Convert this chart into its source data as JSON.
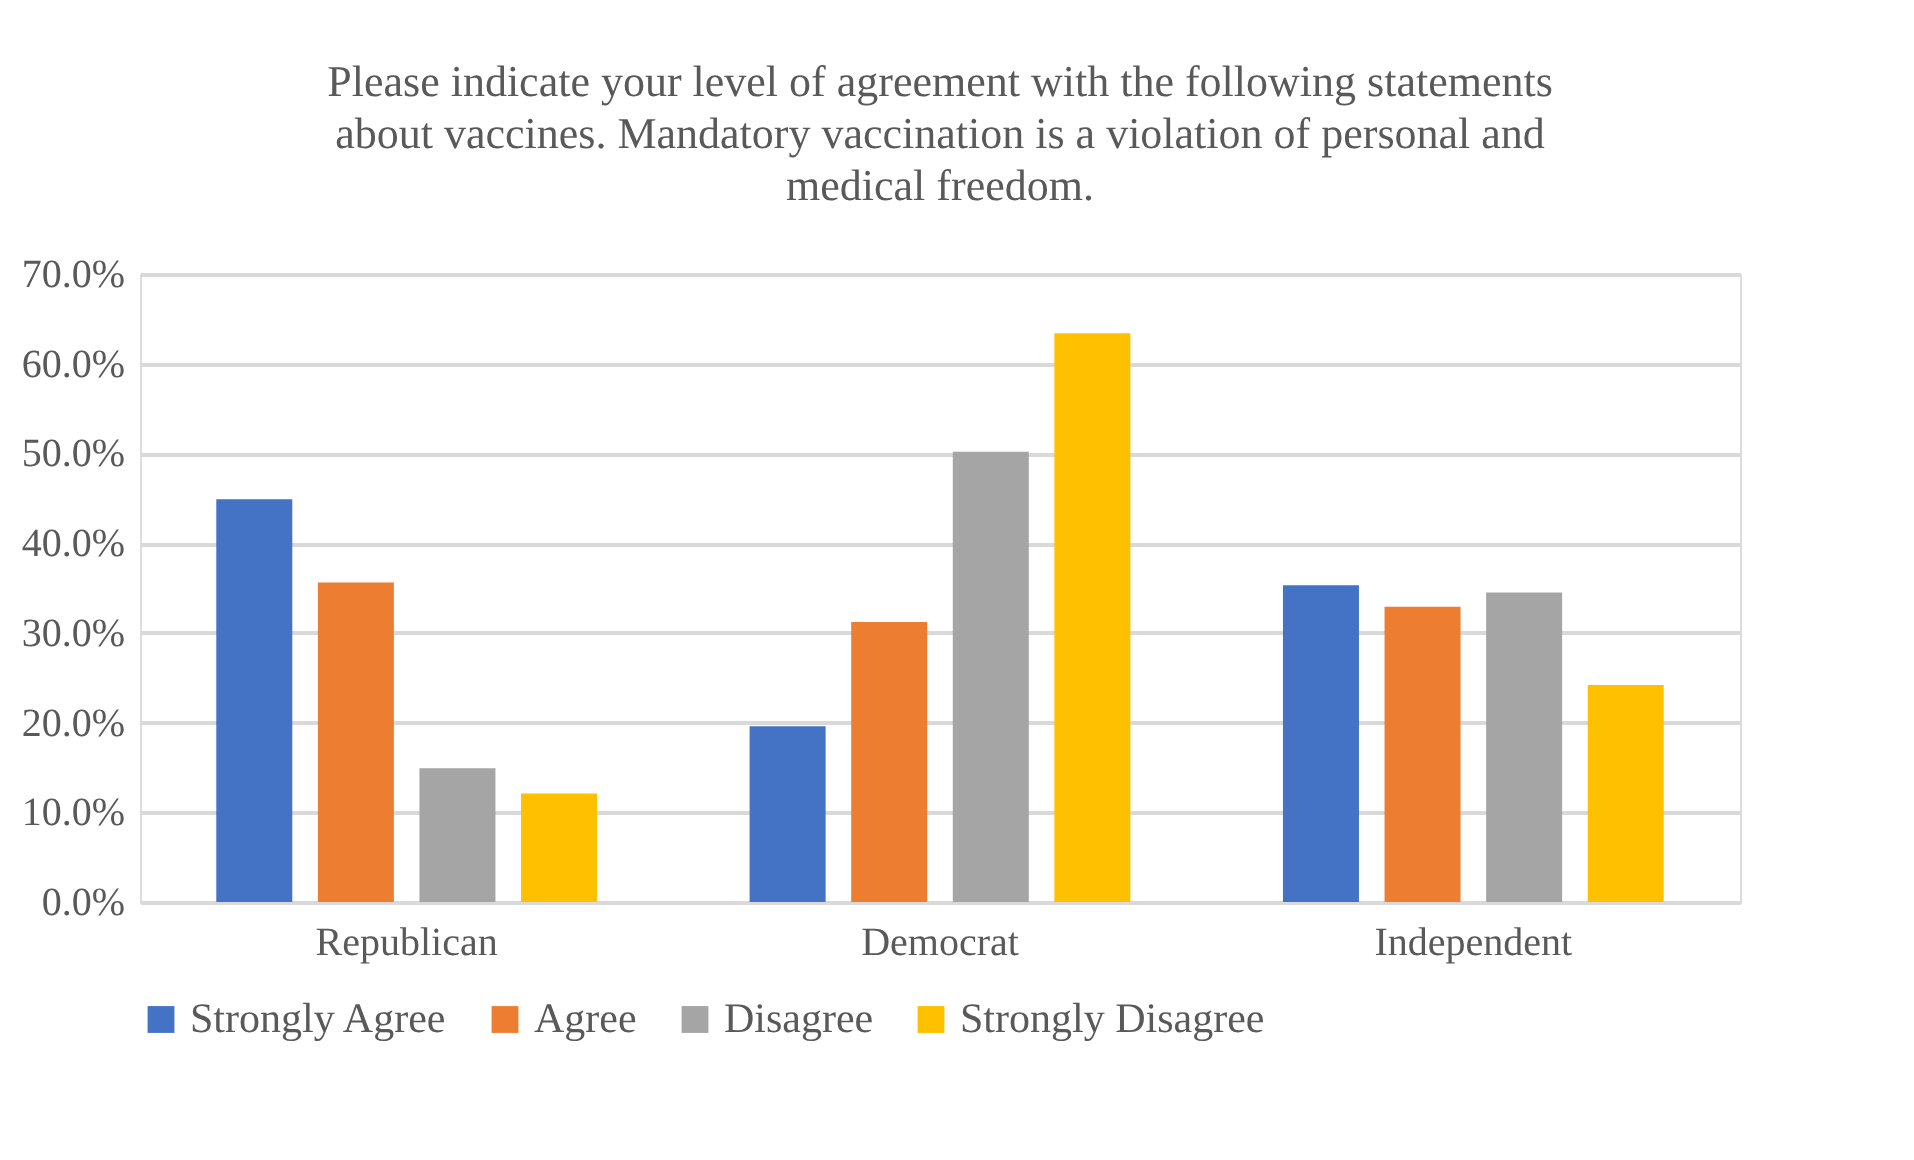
{
  "chart_data": {
    "type": "bar",
    "title": [
      "Please indicate your level of agreement with the following statements",
      "about vaccines. Mandatory vaccination is a violation of personal and",
      "medical freedom."
    ],
    "categories": [
      "Republican",
      "Democrat",
      "Independent"
    ],
    "series": [
      {
        "name": "Strongly Agree",
        "color": "#4472c4",
        "values": [
          44.9,
          19.6,
          35.3
        ]
      },
      {
        "name": "Agree",
        "color": "#ed7d31",
        "values": [
          35.6,
          31.2,
          32.9
        ]
      },
      {
        "name": "Disagree",
        "color": "#a5a5a5",
        "values": [
          14.9,
          50.2,
          34.5
        ]
      },
      {
        "name": "Strongly Disagree",
        "color": "#ffc000",
        "values": [
          12.1,
          63.4,
          24.2
        ]
      }
    ],
    "ylim": [
      0,
      70
    ],
    "yticks": [
      {
        "value": 0,
        "label": "0.0%"
      },
      {
        "value": 10,
        "label": "10.0%"
      },
      {
        "value": 20,
        "label": "20.0%"
      },
      {
        "value": 30,
        "label": "30.0%"
      },
      {
        "value": 40,
        "label": "40.0%"
      },
      {
        "value": 50,
        "label": "50.0%"
      },
      {
        "value": 60,
        "label": "60.0%"
      },
      {
        "value": 70,
        "label": "70.0%"
      }
    ],
    "grid": "y",
    "legend": "bottom"
  }
}
